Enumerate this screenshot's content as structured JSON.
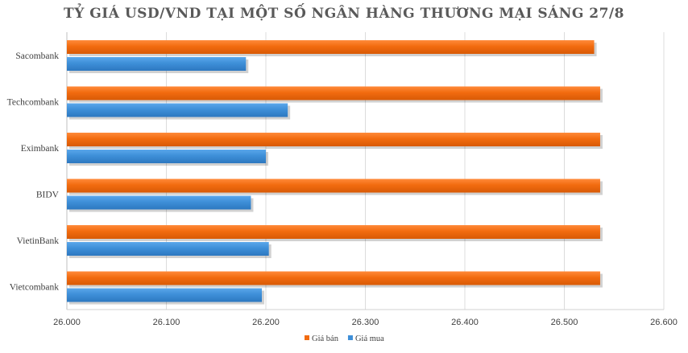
{
  "chart_data": {
    "type": "bar",
    "orientation": "horizontal",
    "title": "TỶ GIÁ USD/VND TẠI MỘT SỐ NGÂN HÀNG THƯƠNG MẠI SÁNG 27/8",
    "categories": [
      "Sacombank",
      "Techcombank",
      "Eximbank",
      "BIDV",
      "VietinBank",
      "Vietcombank"
    ],
    "series": [
      {
        "name": "Giá bán",
        "color": "#f26b0f",
        "values": [
          26530,
          26536,
          26536,
          26536,
          26536,
          26536
        ]
      },
      {
        "name": "Giá mua",
        "color": "#3e8fd8",
        "values": [
          26180,
          26222,
          26200,
          26185,
          26203,
          26196
        ]
      }
    ],
    "xlim": [
      26000,
      26600
    ],
    "x_ticks": [
      26000,
      26100,
      26200,
      26300,
      26400,
      26500,
      26600
    ],
    "x_tick_labels": [
      "26.000",
      "26.100",
      "26.200",
      "26.300",
      "26.400",
      "26.500",
      "26.600"
    ],
    "grid": true,
    "legend": "bottom-center",
    "xlabel": "",
    "ylabel": ""
  }
}
